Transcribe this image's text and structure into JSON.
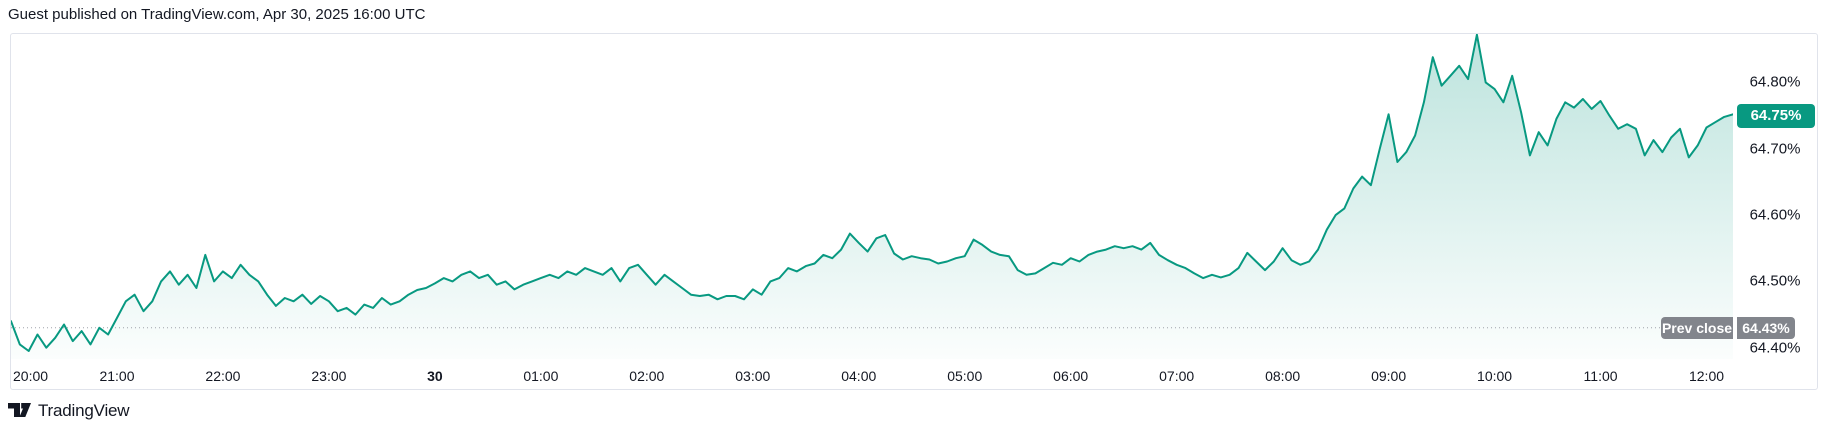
{
  "header": {
    "attribution": "Guest published on TradingView.com, Apr 30, 2025 16:00 UTC"
  },
  "footer": {
    "brand": "TradingView"
  },
  "colors": {
    "accent": "#089981",
    "prev_close_gray": "#82858c",
    "text": "#131722",
    "border": "#e0e3eb",
    "dotted_line": "#a0a3ab"
  },
  "chart_data": {
    "type": "area",
    "title": "",
    "xlabel": "",
    "ylabel": "",
    "grid": false,
    "legend": "none",
    "current": {
      "value": 64.75,
      "value_label": "64.75%"
    },
    "prev_close": {
      "value": 64.43,
      "label": "Prev close",
      "value_label": "64.43%"
    },
    "y_axis": {
      "ylim": [
        64.383,
        64.873
      ],
      "ticks": [
        {
          "label": "64.80%",
          "value": 64.8
        },
        {
          "label": "64.70%",
          "value": 64.7
        },
        {
          "label": "64.60%",
          "value": 64.6
        },
        {
          "label": "64.50%",
          "value": 64.5
        },
        {
          "label": "64.40%",
          "value": 64.4
        }
      ]
    },
    "x_axis": {
      "start_label": "20:00",
      "end_label": "12:15",
      "total_minutes": 975,
      "interval_minutes": 5,
      "ticks": [
        {
          "label": "20:00",
          "minutes": 0
        },
        {
          "label": "21:00",
          "minutes": 60
        },
        {
          "label": "22:00",
          "minutes": 120
        },
        {
          "label": "23:00",
          "minutes": 180
        },
        {
          "label": "30",
          "minutes": 240,
          "bold": true
        },
        {
          "label": "01:00",
          "minutes": 300
        },
        {
          "label": "02:00",
          "minutes": 360
        },
        {
          "label": "03:00",
          "minutes": 420
        },
        {
          "label": "04:00",
          "minutes": 480
        },
        {
          "label": "05:00",
          "minutes": 540
        },
        {
          "label": "06:00",
          "minutes": 600
        },
        {
          "label": "07:00",
          "minutes": 660
        },
        {
          "label": "08:00",
          "minutes": 720
        },
        {
          "label": "09:00",
          "minutes": 780
        },
        {
          "label": "10:00",
          "minutes": 840
        },
        {
          "label": "11:00",
          "minutes": 900
        },
        {
          "label": "12:00",
          "minutes": 960
        }
      ]
    },
    "series": [
      {
        "name": "value-percent",
        "values": [
          64.44,
          64.405,
          64.395,
          64.42,
          64.4,
          64.415,
          64.435,
          64.41,
          64.425,
          64.405,
          64.43,
          64.42,
          64.445,
          64.47,
          64.48,
          64.455,
          64.47,
          64.5,
          64.515,
          64.495,
          64.51,
          64.49,
          64.54,
          64.5,
          64.515,
          64.505,
          64.525,
          64.51,
          64.5,
          64.48,
          64.463,
          64.475,
          64.47,
          64.48,
          64.466,
          64.478,
          64.47,
          64.455,
          64.46,
          64.45,
          64.465,
          64.46,
          64.475,
          64.465,
          64.47,
          64.48,
          64.487,
          64.49,
          64.497,
          64.505,
          64.5,
          64.51,
          64.515,
          64.505,
          64.51,
          64.495,
          64.5,
          64.488,
          64.495,
          64.5,
          64.505,
          64.51,
          64.505,
          64.515,
          64.51,
          64.52,
          64.515,
          64.51,
          64.52,
          64.5,
          64.52,
          64.525,
          64.51,
          64.495,
          64.51,
          64.5,
          64.49,
          64.48,
          64.478,
          64.48,
          64.473,
          64.478,
          64.478,
          64.473,
          64.488,
          64.48,
          64.5,
          64.505,
          64.52,
          64.515,
          64.523,
          64.527,
          64.54,
          64.535,
          64.548,
          64.572,
          64.558,
          64.545,
          64.565,
          64.57,
          64.542,
          64.533,
          64.538,
          64.535,
          64.533,
          64.527,
          64.53,
          64.535,
          64.538,
          64.563,
          64.555,
          64.545,
          64.54,
          64.538,
          64.517,
          64.51,
          64.512,
          64.52,
          64.528,
          64.525,
          64.535,
          64.53,
          64.54,
          64.545,
          64.548,
          64.553,
          64.55,
          64.553,
          64.548,
          64.558,
          64.54,
          64.532,
          64.525,
          64.52,
          64.512,
          64.505,
          64.51,
          64.506,
          64.51,
          64.52,
          64.543,
          64.53,
          64.517,
          64.53,
          64.55,
          64.532,
          64.525,
          64.53,
          64.548,
          64.578,
          64.6,
          64.61,
          64.64,
          64.658,
          64.645,
          64.7,
          64.752,
          64.68,
          64.695,
          64.72,
          64.77,
          64.838,
          64.795,
          64.81,
          64.825,
          64.805,
          64.872,
          64.8,
          64.79,
          64.77,
          64.81,
          64.755,
          64.69,
          64.725,
          64.705,
          64.745,
          64.77,
          64.762,
          64.775,
          64.76,
          64.772,
          64.75,
          64.73,
          64.737,
          64.73,
          64.69,
          64.713,
          64.695,
          64.717,
          64.73,
          64.687,
          64.705,
          64.732,
          64.74,
          64.748,
          64.752
        ]
      }
    ]
  }
}
